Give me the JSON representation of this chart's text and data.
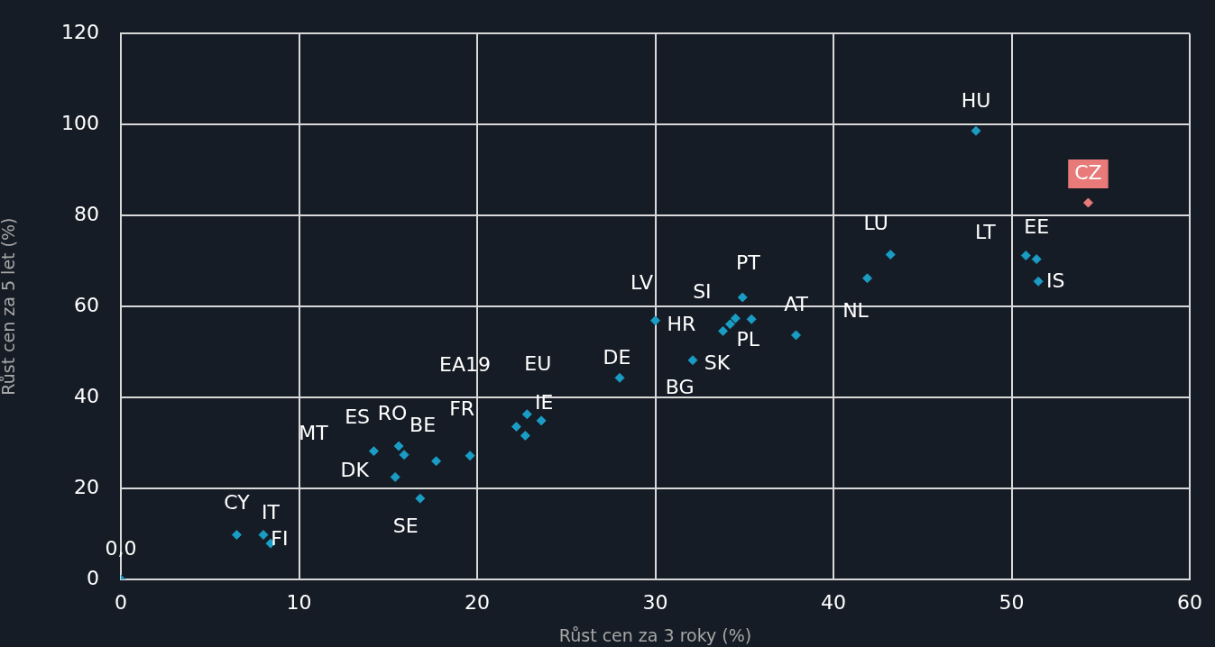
{
  "chart_data": {
    "type": "scatter",
    "xlabel": "Růst cen za 3 roky (%)",
    "ylabel": "Růst cen za 5 let (%)",
    "xlim": [
      0,
      60
    ],
    "xticks": [
      0,
      10,
      20,
      30,
      40,
      50,
      60
    ],
    "ylim": [
      0,
      120
    ],
    "yticks": [
      0,
      20,
      40,
      60,
      80,
      100,
      120
    ],
    "grid": true,
    "legend": false,
    "marker": "diamond",
    "series": [
      {
        "color": "#1a9cc4",
        "colors": [
          "#1a9cc4",
          "#1a9cc4",
          "#1a9cc4",
          "#1a9cc4",
          "#1a9cc4",
          "#1a9cc4",
          "#1a9cc4",
          "#1a9cc4",
          "#1a9cc4",
          "#1a9cc4",
          "#1a9cc4",
          "#1a9cc4",
          "#1a9cc4",
          "#1a9cc4",
          "#1a9cc4",
          "#1a9cc4",
          "#1a9cc4",
          "#1a9cc4",
          "#1a9cc4",
          "#1a9cc4",
          "#1a9cc4",
          "#1a9cc4",
          "#1a9cc4",
          "#1a9cc4",
          "#1a9cc4",
          "#1a9cc4",
          "#1a9cc4",
          "#1a9cc4",
          "#1a9cc4",
          "#1a9cc4",
          "#e87a7a"
        ],
        "x": [
          0,
          6.5,
          8.0,
          8.4,
          14.2,
          15.6,
          15.9,
          17.7,
          19.6,
          15.4,
          16.8,
          22.2,
          22.8,
          23.6,
          22.7,
          28.0,
          30.0,
          32.1,
          33.8,
          34.2,
          34.5,
          35.4,
          34.9,
          37.9,
          41.9,
          43.2,
          50.8,
          51.4,
          51.5,
          48.0,
          54.3
        ],
        "values": [
          0,
          9.8,
          9.8,
          7.9,
          28.2,
          29.3,
          27.4,
          26.0,
          27.2,
          22.5,
          17.8,
          33.6,
          36.3,
          34.9,
          31.6,
          44.3,
          56.9,
          48.2,
          54.6,
          56.1,
          57.4,
          57.2,
          62.0,
          53.7,
          66.2,
          71.4,
          71.2,
          70.4,
          65.5,
          98.6,
          82.8
        ]
      }
    ],
    "annotations": [
      {
        "text": "0,0",
        "x": 0,
        "y": 0
      },
      {
        "text": "CY",
        "x": 6.5,
        "y": 9.8
      },
      {
        "text": "IT",
        "x": 8.0,
        "y": 9.8
      },
      {
        "text": "FI",
        "x": 8.4,
        "y": 7.9
      },
      {
        "text": "MT",
        "x": 14.2,
        "y": 28.2
      },
      {
        "text": "ES",
        "x": 15.6,
        "y": 29.3
      },
      {
        "text": "RO",
        "x": 15.9,
        "y": 27.4
      },
      {
        "text": "BE",
        "x": 17.7,
        "y": 26.0
      },
      {
        "text": "FR",
        "x": 19.6,
        "y": 27.2
      },
      {
        "text": "DK",
        "x": 15.4,
        "y": 22.5
      },
      {
        "text": "SE",
        "x": 16.8,
        "y": 17.8
      },
      {
        "text": "EA19",
        "x": 22.2,
        "y": 33.6
      },
      {
        "text": "EU",
        "x": 22.8,
        "y": 36.3
      },
      {
        "text": "IE",
        "x": 23.6,
        "y": 34.9
      },
      {
        "text": "DE",
        "x": 28.0,
        "y": 44.3
      },
      {
        "text": "LV",
        "x": 30.0,
        "y": 56.9
      },
      {
        "text": "SK",
        "x": 32.1,
        "y": 48.2
      },
      {
        "text": "BG",
        "x": 33.8,
        "y": 54.6
      },
      {
        "text": "HR",
        "x": 34.2,
        "y": 56.1
      },
      {
        "text": "SI",
        "x": 34.5,
        "y": 57.4
      },
      {
        "text": "PL",
        "x": 35.4,
        "y": 57.2
      },
      {
        "text": "PT",
        "x": 34.9,
        "y": 62.0
      },
      {
        "text": "AT",
        "x": 37.9,
        "y": 53.7
      },
      {
        "text": "NL",
        "x": 41.9,
        "y": 66.2
      },
      {
        "text": "LU",
        "x": 43.2,
        "y": 71.4
      },
      {
        "text": "LT",
        "x": 50.8,
        "y": 71.2
      },
      {
        "text": "EE",
        "x": 51.4,
        "y": 70.4
      },
      {
        "text": "IS",
        "x": 51.5,
        "y": 65.5
      },
      {
        "text": "HU",
        "x": 48.0,
        "y": 98.6
      },
      {
        "text": "CZ",
        "x": 54.3,
        "y": 82.8
      }
    ]
  }
}
